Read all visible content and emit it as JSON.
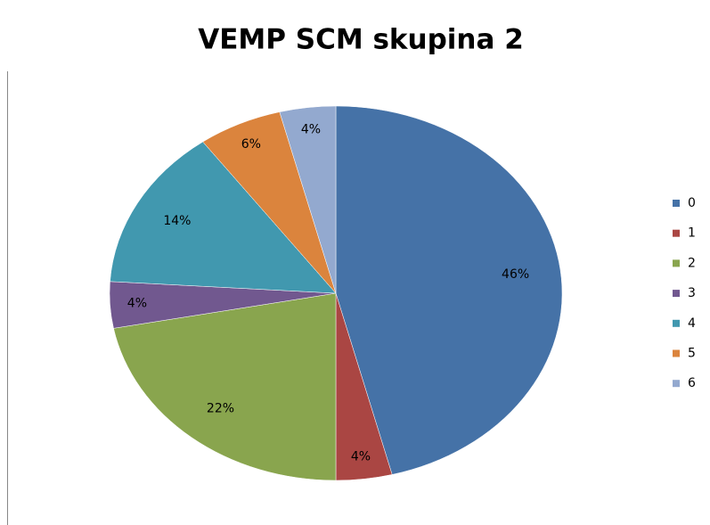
{
  "chart_data": {
    "type": "pie",
    "title": "VEMP SCM skupina 2",
    "categories": [
      "0",
      "1",
      "2",
      "3",
      "4",
      "5",
      "6"
    ],
    "values": [
      46,
      4,
      22,
      4,
      14,
      6,
      4
    ],
    "value_labels": [
      "46%",
      "4%",
      "22%",
      "4%",
      "14%",
      "6%",
      "4%"
    ],
    "colors": [
      "#4572a7",
      "#aa4643",
      "#89a54e",
      "#71588f",
      "#4198af",
      "#db843d",
      "#93a9cf"
    ],
    "legend": "right"
  }
}
